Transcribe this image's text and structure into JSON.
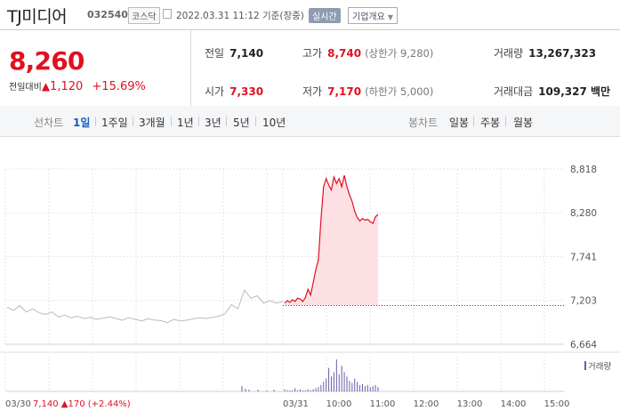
{
  "header": {
    "name": "TJ미디어",
    "code": "032540",
    "market": "코스닥",
    "datetime": "2022.03.31 11:12 기준(장중)",
    "realtime": "실시간",
    "company_info": "기업개요",
    "company_arrow": "▼"
  },
  "quote": {
    "price": "8,260",
    "change_label": "전일대비",
    "change_arrow": "▲",
    "change": "1,120",
    "change_pct": "+15.69%",
    "prev_label": "전일",
    "prev": "7,140",
    "high_label": "고가",
    "high": "8,740",
    "upper_limit": "(상한가 9,280)",
    "volume_label": "거래량",
    "volume": "13,267,323",
    "open_label": "시가",
    "open": "7,330",
    "low_label": "저가",
    "low": "7,170",
    "lower_limit": "(하한가 5,000)",
    "value_label": "거래대금",
    "value": "109,327 백만"
  },
  "tabs": {
    "line_label": "선차트",
    "periods": [
      "1일",
      "1주일",
      "3개월",
      "1년",
      "3년",
      "5년",
      "10년"
    ],
    "candle_label": "봉차트",
    "candles": [
      "일봉",
      "주봉",
      "월봉"
    ]
  },
  "chart_data": {
    "type": "line",
    "y_ticks": [
      "8,818",
      "8,280",
      "7,741",
      "7,203",
      "6,664"
    ],
    "ylim": [
      6664,
      8818
    ],
    "reference_price": 7140,
    "prev_day_label": "03/30",
    "prev_day_quote": "7,140 ▲170 (+2.44%)",
    "day_label": "03/31",
    "x_ticks": [
      "10:00",
      "11:00",
      "12:00",
      "13:00",
      "14:00",
      "15:00"
    ],
    "volume_legend": "거래량",
    "colors": {
      "today": "#e01020",
      "today_fill": "#fde0e3",
      "prev": "#bbbbbb",
      "volume": "#6a5aa8"
    },
    "prev_day_series": [
      7120,
      7080,
      7140,
      7060,
      7100,
      7050,
      7030,
      7060,
      7000,
      7020,
      6990,
      7010,
      6980,
      6995,
      6970,
      6985,
      7000,
      6980,
      6960,
      6990,
      6970,
      6950,
      6980,
      6960,
      6955,
      6930,
      6970,
      6950,
      6960,
      6975,
      6990,
      6980,
      6995,
      7010,
      7040,
      7150,
      7100,
      7330,
      7230,
      7260,
      7170,
      7200,
      7170,
      7190
    ],
    "today_series": [
      7170,
      7200,
      7180,
      7210,
      7190,
      7230,
      7220,
      7190,
      7240,
      7340,
      7270,
      7420,
      7580,
      7700,
      8200,
      8600,
      8700,
      8620,
      8560,
      8720,
      8640,
      8700,
      8600,
      8740,
      8600,
      8500,
      8420,
      8300,
      8220,
      8180,
      8210,
      8190,
      8200,
      8170,
      8150,
      8230,
      8260
    ],
    "volume": [
      2,
      1,
      1,
      1,
      3,
      1,
      2,
      1,
      1,
      2,
      1,
      2,
      3,
      4,
      6,
      9,
      12,
      22,
      14,
      18,
      30,
      16,
      24,
      18,
      14,
      10,
      8,
      12,
      9,
      6,
      7,
      5,
      6,
      4,
      5,
      6,
      4
    ]
  }
}
